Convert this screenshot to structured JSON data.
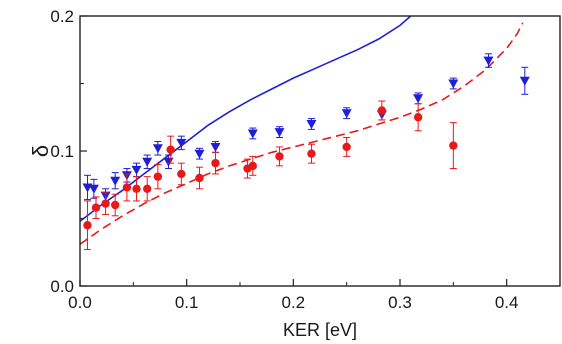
{
  "chart_data": {
    "type": "scatter",
    "title": "",
    "xlabel": "KER [eV]",
    "ylabel": "δ",
    "xlim": [
      0.0,
      0.45
    ],
    "ylim": [
      0.0,
      0.2
    ],
    "xticks": [
      0.0,
      0.1,
      0.2,
      0.3,
      0.4
    ],
    "xtick_labels": [
      "0.0",
      "0.1",
      "0.2",
      "0.3",
      "0.4"
    ],
    "yticks": [
      0.0,
      0.1,
      0.2
    ],
    "ytick_labels": [
      "0.0",
      "0.1",
      "0.2"
    ],
    "grid": false,
    "series": [
      {
        "kind": "scatter-errorbar",
        "marker": "triangle-down",
        "color": "#1f1fd6",
        "x": [
          0.007,
          0.013,
          0.024,
          0.033,
          0.044,
          0.053,
          0.063,
          0.073,
          0.083,
          0.095,
          0.112,
          0.127,
          0.162,
          0.187,
          0.217,
          0.25,
          0.283,
          0.317,
          0.35,
          0.383,
          0.417
        ],
        "y": [
          0.073,
          0.072,
          0.067,
          0.078,
          0.082,
          0.086,
          0.092,
          0.102,
          0.092,
          0.106,
          0.098,
          0.103,
          0.113,
          0.114,
          0.12,
          0.128,
          0.127,
          0.139,
          0.15,
          0.167,
          0.152
        ],
        "err": [
          0.009,
          0.007,
          0.005,
          0.006,
          0.005,
          0.005,
          0.005,
          0.005,
          0.005,
          0.005,
          0.004,
          0.004,
          0.004,
          0.004,
          0.004,
          0.004,
          0.004,
          0.004,
          0.004,
          0.005,
          0.01
        ]
      },
      {
        "kind": "scatter-errorbar",
        "marker": "circle",
        "color": "#e81919",
        "x": [
          0.007,
          0.015,
          0.024,
          0.033,
          0.044,
          0.053,
          0.063,
          0.073,
          0.085,
          0.095,
          0.112,
          0.127,
          0.157,
          0.162,
          0.187,
          0.217,
          0.25,
          0.283,
          0.317,
          0.35
        ],
        "y": [
          0.045,
          0.058,
          0.061,
          0.06,
          0.073,
          0.072,
          0.072,
          0.081,
          0.101,
          0.083,
          0.08,
          0.091,
          0.087,
          0.089,
          0.096,
          0.098,
          0.103,
          0.13,
          0.125,
          0.104
        ],
        "err": [
          0.018,
          0.008,
          0.008,
          0.008,
          0.01,
          0.009,
          0.009,
          0.009,
          0.01,
          0.008,
          0.008,
          0.008,
          0.007,
          0.007,
          0.007,
          0.007,
          0.007,
          0.007,
          0.01,
          0.017
        ]
      },
      {
        "kind": "line",
        "style": "solid",
        "color": "#1f1fd6",
        "x": [
          0.0,
          0.02,
          0.04,
          0.06,
          0.08,
          0.1,
          0.12,
          0.14,
          0.16,
          0.18,
          0.2,
          0.22,
          0.24,
          0.26,
          0.28,
          0.3,
          0.31
        ],
        "y": [
          0.048,
          0.06,
          0.071,
          0.083,
          0.095,
          0.107,
          0.119,
          0.129,
          0.138,
          0.146,
          0.154,
          0.161,
          0.168,
          0.175,
          0.183,
          0.193,
          0.2
        ]
      },
      {
        "kind": "line",
        "style": "dashed",
        "color": "#e81919",
        "x": [
          0.0,
          0.02,
          0.04,
          0.06,
          0.08,
          0.1,
          0.12,
          0.14,
          0.16,
          0.18,
          0.2,
          0.22,
          0.24,
          0.26,
          0.28,
          0.3,
          0.32,
          0.34,
          0.36,
          0.38,
          0.4,
          0.41,
          0.415
        ],
        "y": [
          0.031,
          0.042,
          0.052,
          0.061,
          0.069,
          0.076,
          0.083,
          0.089,
          0.094,
          0.099,
          0.103,
          0.107,
          0.111,
          0.115,
          0.12,
          0.125,
          0.131,
          0.138,
          0.148,
          0.16,
          0.176,
          0.187,
          0.195
        ]
      }
    ]
  }
}
